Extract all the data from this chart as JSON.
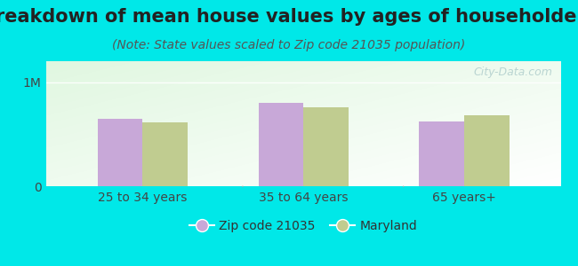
{
  "title": "Breakdown of mean house values by ages of householders",
  "subtitle": "(Note: State values scaled to Zip code 21035 population)",
  "categories": [
    "25 to 34 years",
    "35 to 64 years",
    "65 years+"
  ],
  "zip_values": [
    650000,
    800000,
    620000
  ],
  "state_values": [
    610000,
    760000,
    680000
  ],
  "ylim": [
    0,
    1200000
  ],
  "ytick_labels": [
    "0",
    "1M"
  ],
  "ytick_values": [
    0,
    1000000
  ],
  "zip_color": "#c8a8d8",
  "state_color": "#c0cc90",
  "background_color": "#00e8e8",
  "bar_width": 0.28,
  "legend_zip_label": "Zip code 21035",
  "legend_state_label": "Maryland",
  "watermark": "City-Data.com",
  "title_fontsize": 15,
  "subtitle_fontsize": 10,
  "tick_label_fontsize": 10,
  "legend_fontsize": 10
}
